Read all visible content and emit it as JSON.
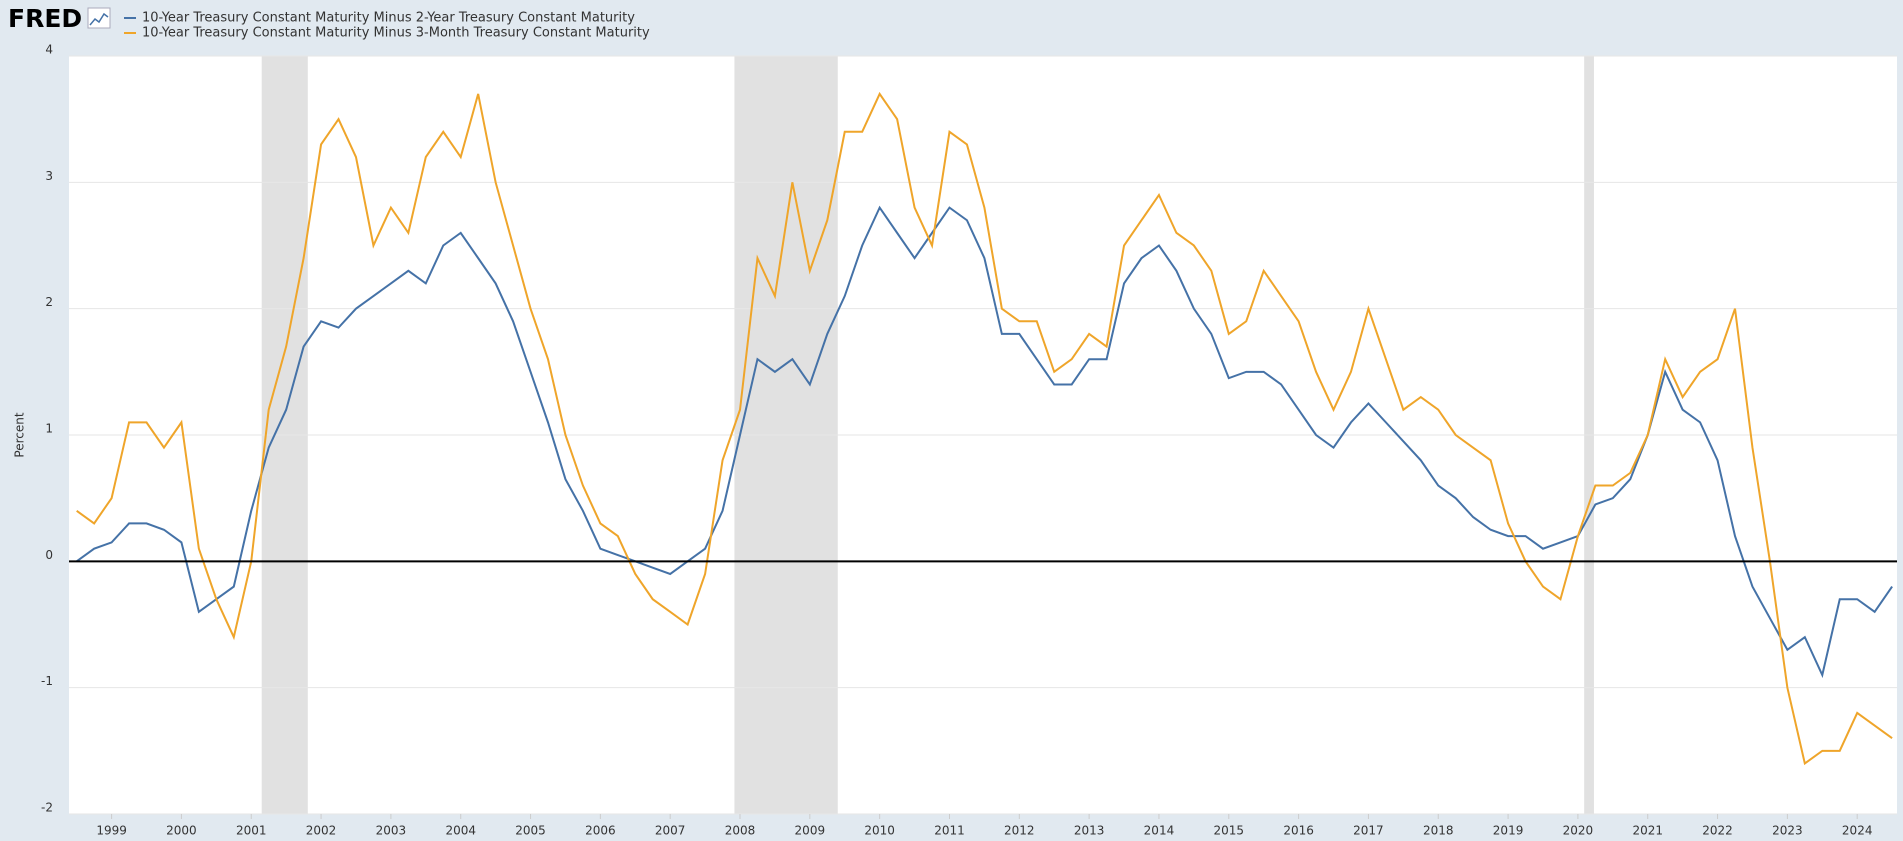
{
  "logo": "FRED",
  "chart_data": {
    "type": "line",
    "y_label": "Percent",
    "xlim": [
      1998.39,
      2024.57
    ],
    "xticks": [
      1999,
      2000,
      2001,
      2002,
      2003,
      2004,
      2005,
      2006,
      2007,
      2008,
      2009,
      2010,
      2011,
      2012,
      2013,
      2014,
      2015,
      2016,
      2017,
      2018,
      2019,
      2020,
      2021,
      2022,
      2023,
      2024
    ],
    "ylim": [
      -2,
      4
    ],
    "yticks": [
      -2,
      -1,
      0,
      1,
      2,
      3,
      4
    ],
    "grid": true,
    "recessions": [
      [
        2001.15,
        2001.81
      ],
      [
        2007.92,
        2009.4
      ],
      [
        2020.09,
        2020.23
      ]
    ],
    "x": [
      1998.5,
      1998.75,
      1999,
      1999.25,
      1999.5,
      1999.75,
      2000,
      2000.25,
      2000.5,
      2000.75,
      2001,
      2001.25,
      2001.5,
      2001.75,
      2002,
      2002.25,
      2002.5,
      2002.75,
      2003,
      2003.25,
      2003.5,
      2003.75,
      2004,
      2004.25,
      2004.5,
      2004.75,
      2005,
      2005.25,
      2005.5,
      2005.75,
      2006,
      2006.25,
      2006.5,
      2006.75,
      2007,
      2007.25,
      2007.5,
      2007.75,
      2008,
      2008.25,
      2008.5,
      2008.75,
      2009,
      2009.25,
      2009.5,
      2009.75,
      2010,
      2010.25,
      2010.5,
      2010.75,
      2011,
      2011.25,
      2011.5,
      2011.75,
      2012,
      2012.25,
      2012.5,
      2012.75,
      2013,
      2013.25,
      2013.5,
      2013.75,
      2014,
      2014.25,
      2014.5,
      2014.75,
      2015,
      2015.25,
      2015.5,
      2015.75,
      2016,
      2016.25,
      2016.5,
      2016.75,
      2017,
      2017.25,
      2017.5,
      2017.75,
      2018,
      2018.25,
      2018.5,
      2018.75,
      2019,
      2019.25,
      2019.5,
      2019.75,
      2020,
      2020.25,
      2020.5,
      2020.75,
      2021,
      2021.25,
      2021.5,
      2021.75,
      2022,
      2022.25,
      2022.5,
      2022.75,
      2023,
      2023.25,
      2023.5,
      2023.75,
      2024,
      2024.25,
      2024.5
    ],
    "series": [
      {
        "name": "10-Year Treasury Constant Maturity Minus 2-Year Treasury Constant Maturity",
        "color": "#4572a7",
        "values": [
          0.0,
          0.1,
          0.15,
          0.3,
          0.3,
          0.25,
          0.15,
          -0.4,
          -0.3,
          -0.2,
          0.4,
          0.9,
          1.2,
          1.7,
          1.9,
          1.85,
          2.0,
          2.1,
          2.2,
          2.3,
          2.2,
          2.5,
          2.6,
          2.4,
          2.2,
          1.9,
          1.5,
          1.1,
          0.65,
          0.4,
          0.1,
          0.05,
          0.0,
          -0.05,
          -0.1,
          0.0,
          0.1,
          0.4,
          1.0,
          1.6,
          1.5,
          1.6,
          1.4,
          1.8,
          2.1,
          2.5,
          2.8,
          2.6,
          2.4,
          2.6,
          2.8,
          2.7,
          2.4,
          1.8,
          1.8,
          1.6,
          1.4,
          1.4,
          1.6,
          1.6,
          2.2,
          2.4,
          2.5,
          2.3,
          2.0,
          1.8,
          1.45,
          1.5,
          1.5,
          1.4,
          1.2,
          1.0,
          0.9,
          1.1,
          1.25,
          1.1,
          0.95,
          0.8,
          0.6,
          0.5,
          0.35,
          0.25,
          0.2,
          0.2,
          0.1,
          0.15,
          0.2,
          0.45,
          0.5,
          0.65,
          1.0,
          1.5,
          1.2,
          1.1,
          0.8,
          0.2,
          -0.2,
          -0.45,
          -0.7,
          -0.6,
          -0.9,
          -0.3,
          -0.3,
          -0.4,
          -0.2
        ]
      },
      {
        "name": "10-Year Treasury Constant Maturity Minus 3-Month Treasury Constant Maturity",
        "color": "#efa52a",
        "values": [
          0.4,
          0.3,
          0.5,
          1.1,
          1.1,
          0.9,
          1.1,
          0.1,
          -0.3,
          -0.6,
          0.0,
          1.2,
          1.7,
          2.4,
          3.3,
          3.5,
          3.2,
          2.5,
          2.8,
          2.6,
          3.2,
          3.4,
          3.2,
          3.7,
          3.0,
          2.5,
          2.0,
          1.6,
          1.0,
          0.6,
          0.3,
          0.2,
          -0.1,
          -0.3,
          -0.4,
          -0.5,
          -0.1,
          0.8,
          1.2,
          2.4,
          2.1,
          3.0,
          2.3,
          2.7,
          3.4,
          3.4,
          3.7,
          3.5,
          2.8,
          2.5,
          3.4,
          3.3,
          2.8,
          2.0,
          1.9,
          1.9,
          1.5,
          1.6,
          1.8,
          1.7,
          2.5,
          2.7,
          2.9,
          2.6,
          2.5,
          2.3,
          1.8,
          1.9,
          2.3,
          2.1,
          1.9,
          1.5,
          1.2,
          1.5,
          2.0,
          1.6,
          1.2,
          1.3,
          1.2,
          1.0,
          0.9,
          0.8,
          0.3,
          0.0,
          -0.2,
          -0.3,
          0.2,
          0.6,
          0.6,
          0.7,
          1.0,
          1.6,
          1.3,
          1.5,
          1.6,
          2.0,
          0.9,
          0.0,
          -1.0,
          -1.6,
          -1.5,
          -1.5,
          -1.2,
          -1.3,
          -1.4
        ]
      }
    ]
  }
}
